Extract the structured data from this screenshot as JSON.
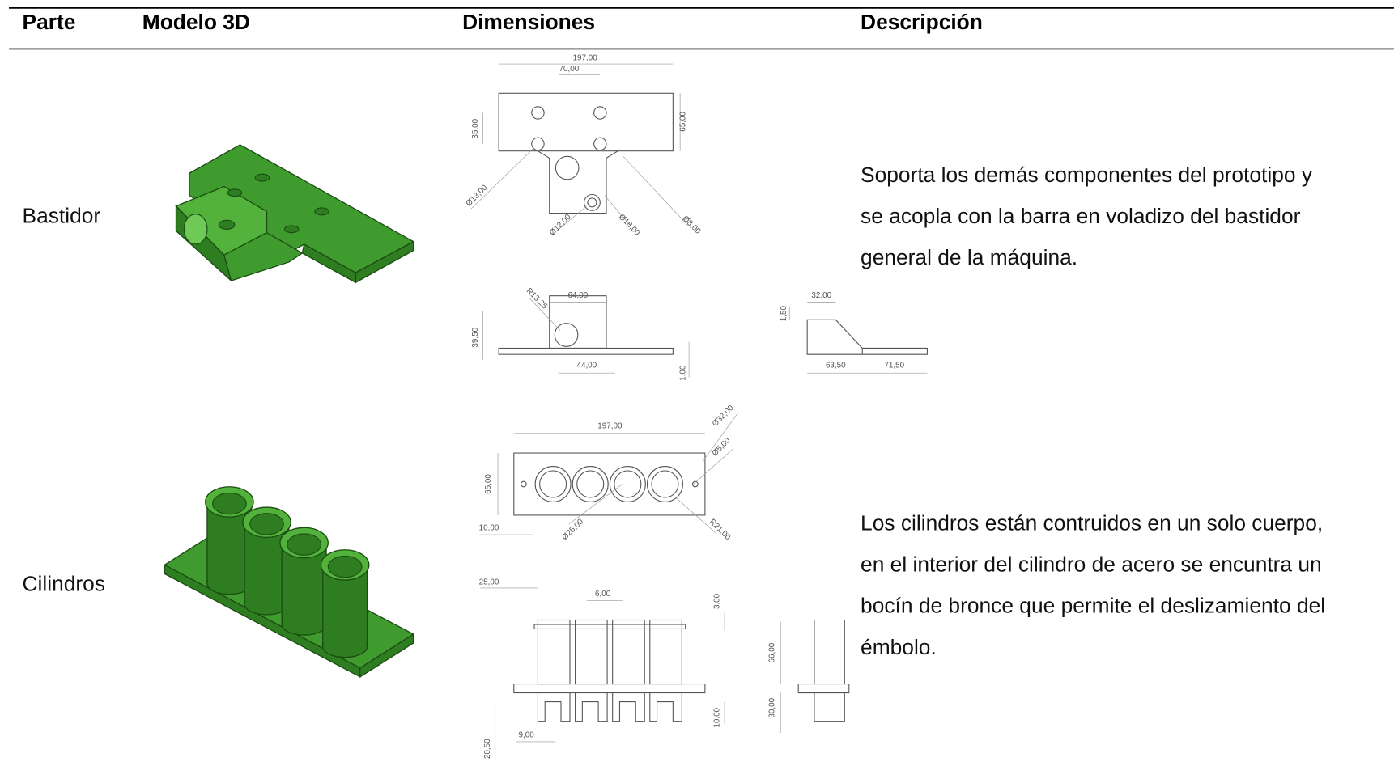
{
  "table": {
    "headers": [
      "Parte",
      "Modelo 3D",
      "Dimensiones",
      "Descripción"
    ],
    "rows": [
      {
        "part": "Bastidor",
        "description_lines": [
          "Soporta los demás componentes del prototipo y",
          "se acopla con la barra en voladizo del bastidor",
          "general de la máquina."
        ],
        "dimension_labels": [
          "197,00",
          "70,00",
          "35,00",
          "65,00",
          "Ø13,00",
          "Ø12,00",
          "Ø18,00",
          "Ø8,00",
          "R13,25",
          "64,00",
          "39,50",
          "44,00",
          "1,00",
          "1,50",
          "32,00",
          "63,50",
          "71,50"
        ]
      },
      {
        "part": "Cilindros",
        "description_lines": [
          "Los cilindros están contruidos en un solo cuerpo,",
          "en el interior del cilindro de acero se encuntra un",
          "bocín de bronce que permite el deslizamiento del",
          "émbolo."
        ],
        "dimension_labels": [
          "197,00",
          "Ø32,00",
          "Ø5,00",
          "65,00",
          "10,00",
          "Ø25,00",
          "R21,00",
          "25,00",
          "6,00",
          "3,00",
          "66,00",
          "30,00",
          "10,00",
          "9,00",
          "20,50"
        ]
      }
    ]
  }
}
